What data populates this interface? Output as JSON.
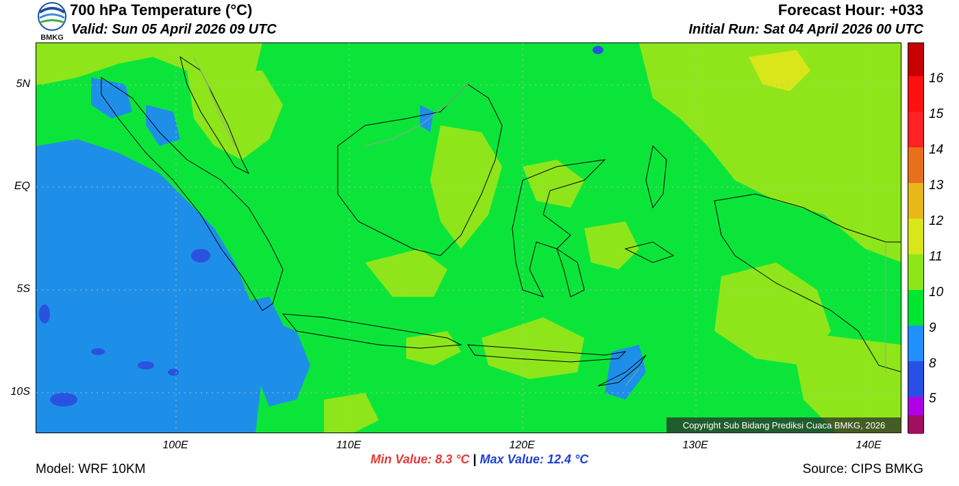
{
  "header": {
    "title": "700 hPa Temperature (°C)",
    "valid": "Valid: Sun 05 April 2026 09 UTC",
    "forecast_hour": "Forecast Hour: +033",
    "initial_run": "Initial Run: Sat 04 April 2026 00 UTC"
  },
  "logo": {
    "text": "BMKG"
  },
  "axes": {
    "lat_labels": [
      "5N",
      "EQ",
      "5S",
      "10S"
    ],
    "lon_labels": [
      "100E",
      "110E",
      "120E",
      "130E",
      "140E"
    ]
  },
  "colorbar": {
    "labels": [
      "16",
      "15",
      "14",
      "13",
      "12",
      "11",
      "10",
      "9",
      "8",
      "5"
    ],
    "colors": [
      "#c80000",
      "#ff0000",
      "#ff1a1a",
      "#e8701a",
      "#e6b81a",
      "#d8e61a",
      "#8ee61a",
      "#00e633",
      "#1e90ff",
      "#2850e6",
      "#b000e6",
      "#a01060"
    ]
  },
  "stats": {
    "min": "Min Value: 8.3 °C",
    "separator": "|",
    "max": "Max Value: 12.4 °C"
  },
  "copyright": "Copyright Sub Bidang Prediksi Cuaca BMKG, 2026",
  "footer": {
    "model": "Model: WRF 10KM",
    "source": "Source: CIPS BMKG"
  },
  "map_colors": {
    "base": "#0be53a",
    "warm": "#8ee61a",
    "warmer": "#d8e61a",
    "cool": "#1e8fe8",
    "cooler": "#2a52e0",
    "coast": "#000000",
    "border": "#9e9e9e"
  }
}
